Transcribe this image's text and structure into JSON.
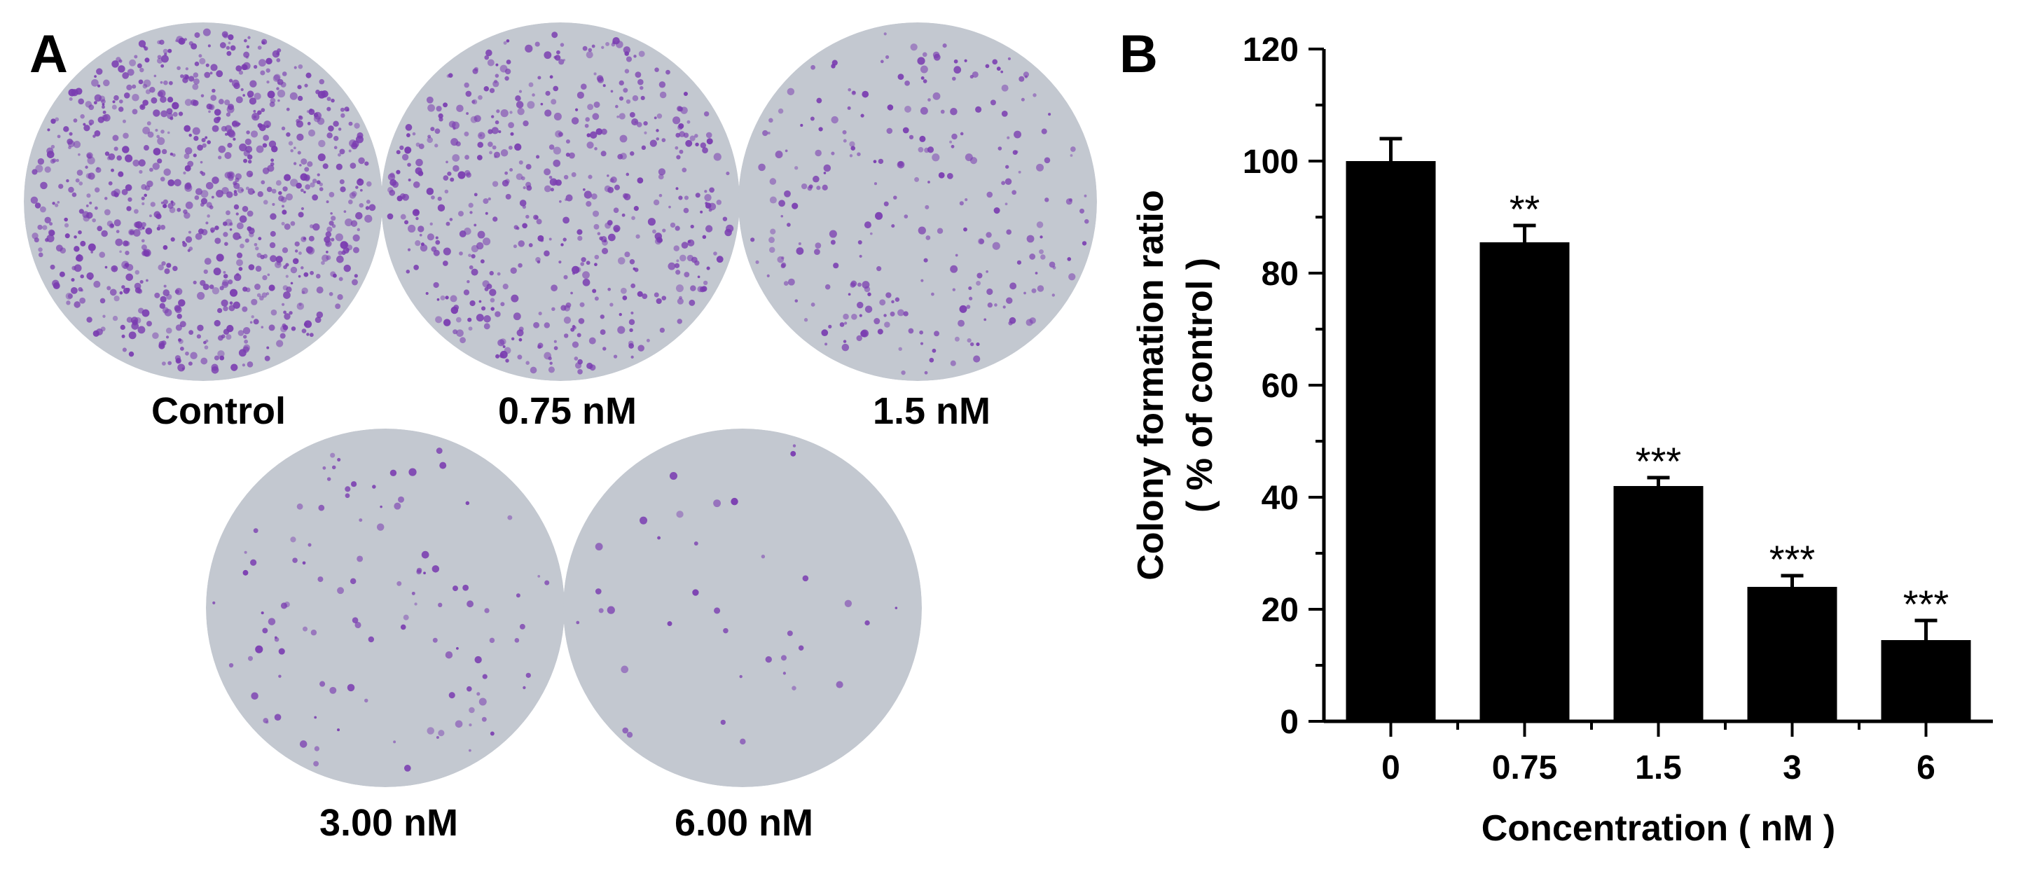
{
  "panel_a": {
    "letter": "A",
    "plates": [
      {
        "label": "Control",
        "density": 1.0
      },
      {
        "label": "0.75 nM",
        "density": 0.62
      },
      {
        "label": "1.5 nM",
        "density": 0.3
      },
      {
        "label": "3.00 nM",
        "density": 0.12
      },
      {
        "label": "6.00 nM",
        "density": 0.04
      }
    ],
    "colors": {
      "plate": "#c3c8d0",
      "colony": "#7a3cb0"
    }
  },
  "panel_b": {
    "letter": "B"
  },
  "chart_data": {
    "type": "bar",
    "categories": [
      "0",
      "0.75",
      "1.5",
      "3",
      "6"
    ],
    "values": [
      100,
      85.5,
      42,
      24,
      14.5
    ],
    "errors": [
      4,
      3,
      1.5,
      2,
      3.5
    ],
    "significance": [
      "",
      "**",
      "***",
      "***",
      "***"
    ],
    "xlabel": "Concentration ( nM )",
    "ylabel": "Colony formation ratio",
    "ylabel2": "( % of control )",
    "ylim": [
      0,
      120
    ],
    "yticks": [
      "0",
      "20",
      "40",
      "60",
      "80",
      "100",
      "120"
    ],
    "bar_color": "#000000",
    "grid": false
  }
}
